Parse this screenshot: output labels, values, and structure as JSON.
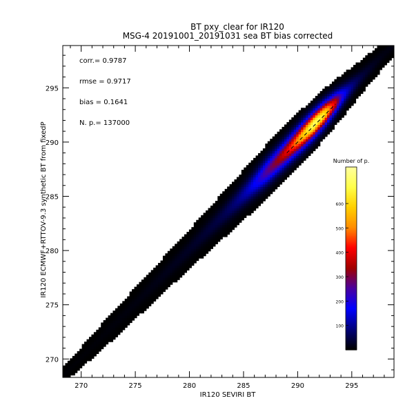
{
  "chart_data": {
    "type": "heatmap",
    "title": "BT pxy_clear for IR120",
    "subtitle": "MSG-4 20191001_20191031 sea BT bias corrected",
    "xlabel": "IR120 SEVIRI BT",
    "ylabel": "IR120 ECMWF+RTTOV-9.3 synthetic BT from fixedP",
    "xlim": [
      268.3,
      298.9
    ],
    "ylim": [
      268.3,
      298.9
    ],
    "x_ticks": [
      270,
      275,
      280,
      285,
      290,
      295
    ],
    "y_ticks": [
      270,
      275,
      280,
      285,
      290,
      295
    ],
    "stats": [
      {
        "label": "corr.= 0.9787"
      },
      {
        "label": "rmse = 0.9717"
      },
      {
        "label": "bias = 0.1641"
      },
      {
        "label": "N. p.=  137000"
      }
    ],
    "colorbar": {
      "title": "Number of p.",
      "range": [
        0,
        750
      ],
      "ticks": [
        100,
        200,
        300,
        400,
        500,
        600
      ]
    },
    "density_ridge": [
      {
        "x": 269.0,
        "width": 0.8,
        "peak": 4
      },
      {
        "x": 272.0,
        "width": 1.2,
        "peak": 6
      },
      {
        "x": 276.0,
        "width": 1.5,
        "peak": 12
      },
      {
        "x": 280.0,
        "width": 1.8,
        "peak": 25
      },
      {
        "x": 283.0,
        "width": 2.1,
        "peak": 50
      },
      {
        "x": 285.0,
        "width": 2.3,
        "peak": 110
      },
      {
        "x": 287.0,
        "width": 2.5,
        "peak": 250
      },
      {
        "x": 289.0,
        "width": 2.5,
        "peak": 400
      },
      {
        "x": 290.5,
        "width": 2.5,
        "peak": 580
      },
      {
        "x": 291.5,
        "width": 2.4,
        "peak": 700
      },
      {
        "x": 292.5,
        "width": 2.3,
        "peak": 620
      },
      {
        "x": 293.5,
        "width": 2.1,
        "peak": 380
      },
      {
        "x": 294.5,
        "width": 1.9,
        "peak": 140
      },
      {
        "x": 296.0,
        "width": 1.5,
        "peak": 40
      },
      {
        "x": 298.0,
        "width": 1.2,
        "peak": 12
      }
    ],
    "reference_line": {
      "x": [
        289.0,
        293.5
      ],
      "y": [
        289.0,
        293.5
      ],
      "style": "dashed"
    },
    "colors": {
      "background_low": "#000000",
      "scale": [
        "#000000",
        "#00007a",
        "#0000ff",
        "#4a00a0",
        "#a00000",
        "#ff0000",
        "#ff8c00",
        "#ffd000",
        "#ffff4a",
        "#ffffa0"
      ]
    }
  }
}
